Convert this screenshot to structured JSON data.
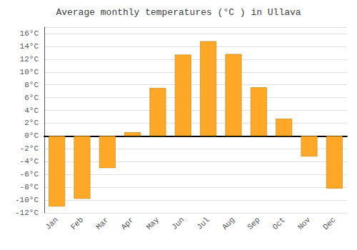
{
  "chart_data": {
    "type": "bar",
    "title": "Average monthly temperatures (°C ) in Ullava",
    "categories": [
      "Jan",
      "Feb",
      "Mar",
      "Apr",
      "May",
      "Jun",
      "Jul",
      "Aug",
      "Sep",
      "Oct",
      "Nov",
      "Dec"
    ],
    "values": [
      -11,
      -9.8,
      -5.0,
      0.6,
      7.5,
      12.7,
      14.8,
      12.8,
      7.6,
      2.7,
      -3.2,
      -8.2
    ],
    "color": "#FFA726",
    "ylim": [
      -12,
      17
    ],
    "yticks": [
      {
        "value": -12,
        "label": "-12°C"
      },
      {
        "value": -10,
        "label": "-10°C"
      },
      {
        "value": -8,
        "label": "-8°C"
      },
      {
        "value": -6,
        "label": "-6°C"
      },
      {
        "value": -4,
        "label": "-4°C"
      },
      {
        "value": -2,
        "label": "-2°C"
      },
      {
        "value": 0,
        "label": "0°C"
      },
      {
        "value": 2,
        "label": "2°C"
      },
      {
        "value": 4,
        "label": "4°C"
      },
      {
        "value": 6,
        "label": "6°C"
      },
      {
        "value": 8,
        "label": "8°C"
      },
      {
        "value": 10,
        "label": "10°C"
      },
      {
        "value": 12,
        "label": "12°C"
      },
      {
        "value": 14,
        "label": "14°C"
      },
      {
        "value": 16,
        "label": "16°C"
      }
    ],
    "grid": true
  }
}
